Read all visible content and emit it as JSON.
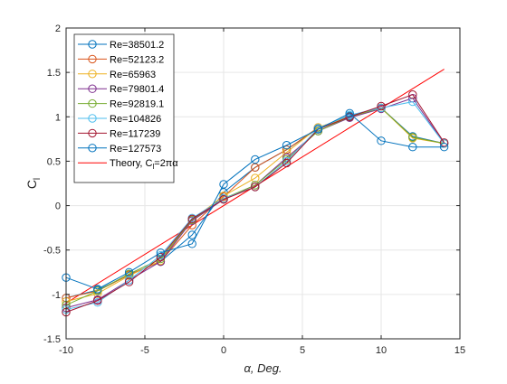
{
  "chart_data": {
    "type": "line",
    "title": "",
    "xlabel": "α, Deg.",
    "ylabel": "C",
    "ylabel_subscript": "l",
    "xlim": [
      -10,
      15
    ],
    "ylim": [
      -1.5,
      2
    ],
    "xticks": [
      -10,
      -5,
      0,
      5,
      10,
      15
    ],
    "yticks": [
      -1.5,
      -1,
      -0.5,
      0,
      0.5,
      1,
      1.5,
      2
    ],
    "xtick_labels": [
      "-10",
      "-5",
      "0",
      "5",
      "10",
      "15"
    ],
    "ytick_labels": [
      "-1.5",
      "-1",
      "-0.5",
      "0",
      "0.5",
      "1",
      "1.5",
      "2"
    ],
    "grid": true,
    "legend_position": "top-left",
    "x": [
      -10,
      -8,
      -6,
      -4,
      -2,
      0,
      2,
      4,
      6,
      8,
      10,
      12,
      14
    ],
    "series": [
      {
        "name": "Re=38501.2",
        "color": "#0072BD",
        "marker": "circle",
        "values": [
          -1.04,
          -0.95,
          -0.78,
          -0.63,
          -0.33,
          0.15,
          0.43,
          0.63,
          0.87,
          1.01,
          1.1,
          0.78,
          0.7
        ]
      },
      {
        "name": "Re=52123.2",
        "color": "#D95319",
        "marker": "circle",
        "values": [
          -1.04,
          -0.96,
          -0.78,
          -0.63,
          -0.22,
          0.1,
          0.43,
          0.63,
          0.88,
          1.0,
          1.1,
          0.77,
          0.7
        ]
      },
      {
        "name": "Re=65963",
        "color": "#EDB120",
        "marker": "circle",
        "values": [
          -1.08,
          -0.99,
          -0.79,
          -0.62,
          -0.16,
          0.11,
          0.31,
          0.6,
          0.88,
          1.0,
          1.1,
          0.76,
          0.7
        ]
      },
      {
        "name": "Re=79801.4",
        "color": "#7E2F8E",
        "marker": "circle",
        "values": [
          -1.15,
          -1.06,
          -0.84,
          -0.63,
          -0.17,
          0.07,
          0.23,
          0.54,
          0.84,
          0.99,
          1.09,
          1.21,
          0.7
        ]
      },
      {
        "name": "Re=92819.1",
        "color": "#77AC30",
        "marker": "circle",
        "values": [
          -1.12,
          -0.96,
          -0.77,
          -0.6,
          -0.16,
          0.08,
          0.23,
          0.52,
          0.84,
          1.0,
          1.1,
          0.77,
          0.7
        ]
      },
      {
        "name": "Re=104826",
        "color": "#4DBEEE",
        "marker": "circle",
        "values": [
          -1.17,
          -1.09,
          -0.84,
          -0.56,
          -0.14,
          0.08,
          0.21,
          0.5,
          0.87,
          1.02,
          1.1,
          1.17,
          0.7
        ]
      },
      {
        "name": "Re=117239",
        "color": "#A2142F",
        "marker": "circle",
        "values": [
          -1.2,
          -1.07,
          -0.86,
          -0.58,
          -0.15,
          0.07,
          0.21,
          0.48,
          0.86,
          1.0,
          1.12,
          1.25,
          0.71
        ]
      },
      {
        "name": "Re=127573",
        "color": "#0072BD",
        "marker": "circle",
        "values": [
          -0.81,
          -0.94,
          -0.75,
          -0.53,
          -0.43,
          0.24,
          0.52,
          0.68,
          0.86,
          1.04,
          0.73,
          0.66,
          0.66
        ]
      }
    ],
    "theory": {
      "name": "Theory, C_l=2πα",
      "color": "#FF0000",
      "x": [
        -10,
        14
      ],
      "values": [
        -1.097,
        1.536
      ]
    },
    "legend_theory_parts": [
      "Theory, C",
      "l",
      "=2πα"
    ]
  }
}
